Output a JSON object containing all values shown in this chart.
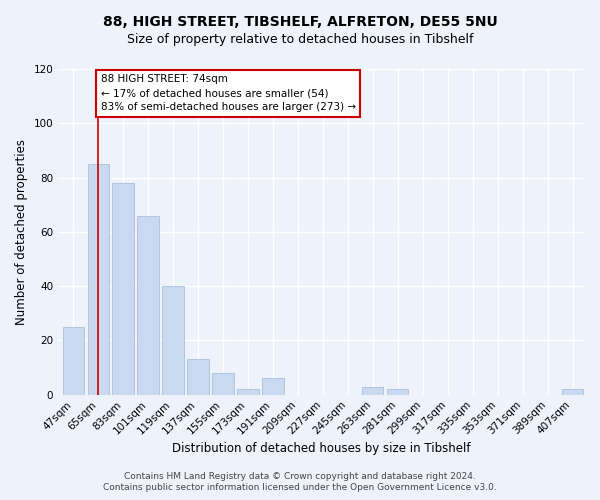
{
  "title": "88, HIGH STREET, TIBSHELF, ALFRETON, DE55 5NU",
  "subtitle": "Size of property relative to detached houses in Tibshelf",
  "xlabel": "Distribution of detached houses by size in Tibshelf",
  "ylabel": "Number of detached properties",
  "bar_labels": [
    "47sqm",
    "65sqm",
    "83sqm",
    "101sqm",
    "119sqm",
    "137sqm",
    "155sqm",
    "173sqm",
    "191sqm",
    "209sqm",
    "227sqm",
    "245sqm",
    "263sqm",
    "281sqm",
    "299sqm",
    "317sqm",
    "335sqm",
    "353sqm",
    "371sqm",
    "389sqm",
    "407sqm"
  ],
  "bar_values": [
    25,
    85,
    78,
    66,
    40,
    13,
    8,
    2,
    6,
    0,
    0,
    0,
    3,
    2,
    0,
    0,
    0,
    0,
    0,
    0,
    2
  ],
  "bar_color": "#c9d9f0",
  "bar_edge_color": "#a0b8d8",
  "ylim": [
    0,
    120
  ],
  "yticks": [
    0,
    20,
    40,
    60,
    80,
    100,
    120
  ],
  "annotation_title": "88 HIGH STREET: 74sqm",
  "annotation_line1": "← 17% of detached houses are smaller (54)",
  "annotation_line2": "83% of semi-detached houses are larger (273) →",
  "vline_x": 1.0,
  "vline_color": "#cc0000",
  "annotation_box_color": "#ffffff",
  "annotation_box_edge_color": "#cc0000",
  "footer1": "Contains HM Land Registry data © Crown copyright and database right 2024.",
  "footer2": "Contains public sector information licensed under the Open Government Licence v3.0.",
  "background_color": "#eef2fb",
  "grid_color": "#ffffff",
  "title_fontsize": 10,
  "subtitle_fontsize": 9,
  "axis_label_fontsize": 8.5,
  "tick_fontsize": 7.5,
  "footer_fontsize": 6.5
}
